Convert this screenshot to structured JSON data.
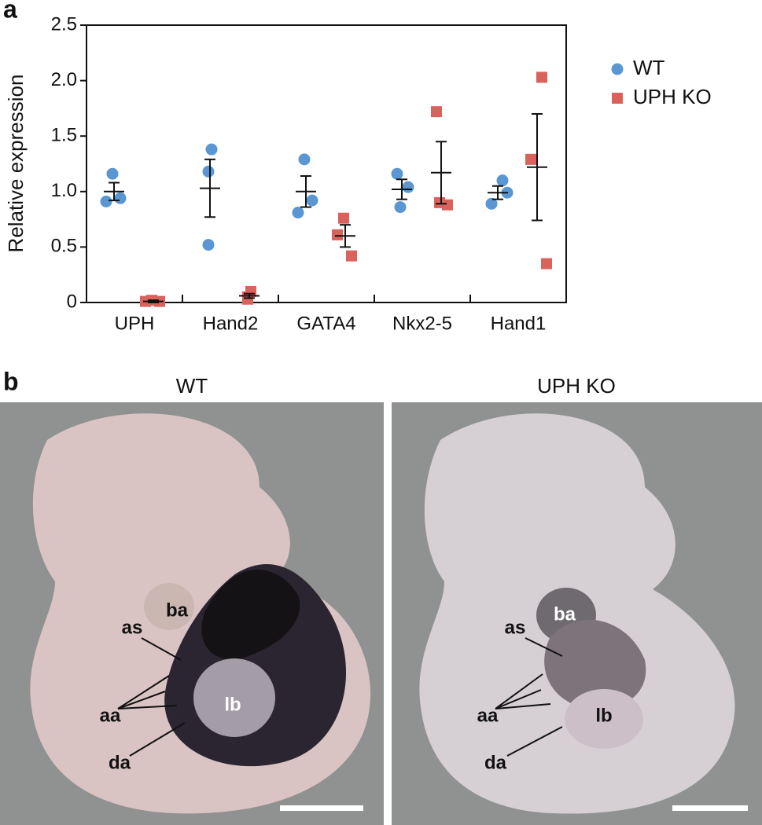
{
  "panel_labels": [
    "a",
    "b"
  ],
  "chart_data": {
    "type": "dotplot",
    "ylabel": "Relative expression",
    "categories": [
      "UPH",
      "Hand2",
      "GATA4",
      "Nkx2-5",
      "Hand1"
    ],
    "ylim": [
      0,
      2.5
    ],
    "yticks": [
      0,
      0.5,
      {
        "value": 1,
        "label": "1.0"
      },
      1.5,
      {
        "value": 2,
        "label": "2.0"
      },
      2.5
    ],
    "series": [
      {
        "name": "WT",
        "color": "#5a97d2",
        "values": [
          [
            1.16,
            0.91,
            0.94
          ],
          [
            1.38,
            1.18,
            0.52
          ],
          [
            1.29,
            0.81,
            0.92
          ],
          [
            1.16,
            1.04,
            0.86
          ],
          [
            1.1,
            0.89,
            0.99
          ]
        ],
        "means": [
          1.0,
          1.03,
          1.0,
          1.02,
          0.99
        ],
        "errors": [
          0.08,
          0.26,
          0.14,
          0.09,
          0.06
        ]
      },
      {
        "name": "UPH KO",
        "color": "#d9625c",
        "values": [
          [
            0.02,
            0.01,
            0.01
          ],
          [
            0.1,
            0.05,
            0.03
          ],
          [
            0.76,
            0.61,
            0.42
          ],
          [
            1.72,
            0.88,
            0.9
          ],
          [
            2.03,
            1.29,
            0.35
          ]
        ],
        "means": [
          0.01,
          0.06,
          0.6,
          1.17,
          1.22
        ],
        "errors": [
          0.01,
          0.02,
          0.1,
          0.28,
          0.48
        ]
      }
    ]
  },
  "images": [
    {
      "title": "WT",
      "labels": [
        "ba",
        "as",
        "aa",
        "da",
        "lb"
      ]
    },
    {
      "title": "UPH KO",
      "labels": [
        "ba",
        "as",
        "aa",
        "da",
        "lb"
      ]
    }
  ]
}
